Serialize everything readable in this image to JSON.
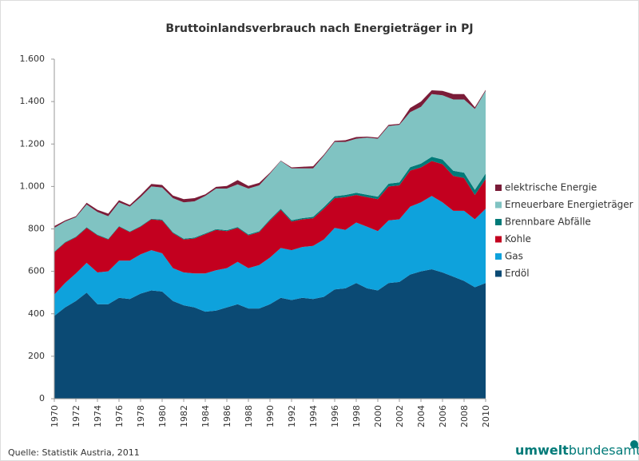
{
  "chart_data": {
    "type": "stacked_area",
    "title": "Bruttoinlandsverbrauch nach Energieträger in PJ",
    "source": "Quelle: Statistik Austria, 2011",
    "logo": [
      "umwelt",
      "bundesamt"
    ],
    "x": [
      1970,
      1971,
      1972,
      1973,
      1974,
      1975,
      1976,
      1977,
      1978,
      1979,
      1980,
      1981,
      1982,
      1983,
      1984,
      1985,
      1986,
      1987,
      1988,
      1989,
      1990,
      1991,
      1992,
      1993,
      1994,
      1995,
      1996,
      1997,
      1998,
      1999,
      2000,
      2001,
      2002,
      2003,
      2004,
      2005,
      2006,
      2007,
      2008,
      2009,
      2010
    ],
    "xlim": [
      1970,
      2010
    ],
    "xticks": [
      1970,
      1972,
      1974,
      1976,
      1978,
      1980,
      1982,
      1984,
      1986,
      1988,
      1990,
      1992,
      1994,
      1996,
      1998,
      2000,
      2002,
      2004,
      2006,
      2008,
      2010
    ],
    "ylim": [
      0,
      1600
    ],
    "yticks": [
      0,
      200,
      400,
      600,
      800,
      {
        "value": 1000,
        "label": "1.000"
      },
      {
        "value": 1200,
        "label": "1.200"
      },
      {
        "value": 1400,
        "label": "1.400"
      },
      {
        "value": 1600,
        "label": "1.600"
      }
    ],
    "grid": false,
    "legend": "right",
    "series": [
      {
        "name": "Erdöl",
        "color": "#0b4a74",
        "values": [
          390,
          430,
          460,
          500,
          445,
          445,
          475,
          470,
          495,
          510,
          505,
          460,
          440,
          430,
          410,
          415,
          430,
          445,
          425,
          425,
          445,
          475,
          465,
          475,
          470,
          480,
          515,
          520,
          545,
          520,
          510,
          545,
          550,
          585,
          600,
          610,
          595,
          575,
          555,
          525,
          545
        ]
      },
      {
        "name": "Gas",
        "color": "#0ea2dc",
        "values": [
          100,
          115,
          130,
          140,
          150,
          155,
          175,
          180,
          185,
          190,
          180,
          155,
          155,
          160,
          180,
          190,
          185,
          200,
          190,
          205,
          220,
          235,
          235,
          240,
          250,
          270,
          290,
          275,
          285,
          290,
          280,
          295,
          295,
          320,
          325,
          345,
          330,
          310,
          330,
          320,
          350
        ]
      },
      {
        "name": "Kohle",
        "color": "#c3001f",
        "values": [
          200,
          190,
          170,
          165,
          175,
          150,
          160,
          135,
          130,
          145,
          155,
          165,
          155,
          165,
          185,
          190,
          175,
          160,
          155,
          155,
          175,
          180,
          135,
          130,
          130,
          145,
          140,
          155,
          130,
          140,
          150,
          160,
          160,
          170,
          165,
          165,
          180,
          165,
          155,
          115,
          140
        ]
      },
      {
        "name": "Brennbare Abfälle",
        "color": "#007a78",
        "values": [
          3,
          3,
          3,
          3,
          3,
          3,
          3,
          3,
          3,
          3,
          4,
          4,
          4,
          4,
          4,
          4,
          4,
          4,
          4,
          4,
          5,
          5,
          6,
          6,
          7,
          8,
          9,
          10,
          10,
          11,
          12,
          13,
          14,
          16,
          18,
          20,
          22,
          24,
          25,
          24,
          26
        ]
      },
      {
        "name": "Erneuerbare Energieträger",
        "color": "#80c3c2",
        "values": [
          112,
          97,
          92,
          107,
          107,
          107,
          112,
          117,
          137,
          152,
          151,
          161,
          171,
          171,
          176,
          191,
          196,
          201,
          216,
          216,
          215,
          225,
          244,
          234,
          228,
          242,
          256,
          250,
          255,
          269,
          273,
          272,
          271,
          259,
          267,
          295,
          303,
          336,
          345,
          381,
          389
        ]
      },
      {
        "name": "elektrische Energie",
        "color": "#7a1c38",
        "values": [
          8,
          5,
          5,
          8,
          10,
          12,
          10,
          8,
          10,
          12,
          12,
          12,
          15,
          15,
          8,
          8,
          12,
          20,
          12,
          12,
          5,
          2,
          5,
          8,
          10,
          5,
          5,
          8,
          8,
          5,
          5,
          5,
          5,
          20,
          25,
          18,
          20,
          25,
          25,
          8,
          5
        ]
      }
    ]
  }
}
